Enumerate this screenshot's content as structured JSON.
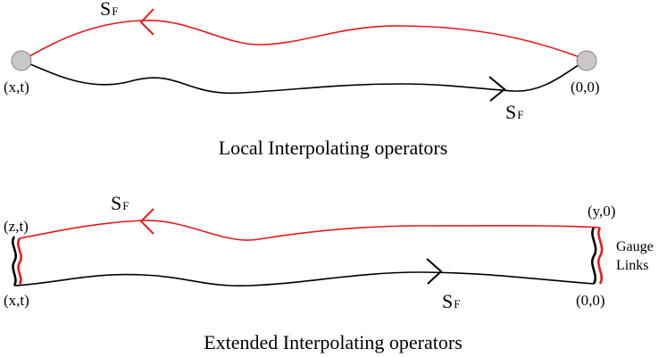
{
  "colors": {
    "backward_path": "#e8191a",
    "forward_path": "#000000",
    "source_point": "#c8c8c8"
  },
  "top_panel": {
    "caption": "Local Interpolating operators",
    "left_point": "(x,t)",
    "right_point": "(0,0)",
    "propagator_top": {
      "main": "S",
      "sub": "F"
    },
    "propagator_bottom": {
      "main": "S",
      "sub": "F"
    }
  },
  "bottom_panel": {
    "caption": "Extended Interpolating operators",
    "top_left_point": "(z,t)",
    "bottom_left_point": "(x,t)",
    "top_right_point": "(y,0)",
    "bottom_right_point": "(0,0)",
    "gauge_label_line1": "Gauge",
    "gauge_label_line2": "Links",
    "propagator_top": {
      "main": "S",
      "sub": "F"
    },
    "propagator_bottom": {
      "main": "S",
      "sub": "F"
    }
  }
}
